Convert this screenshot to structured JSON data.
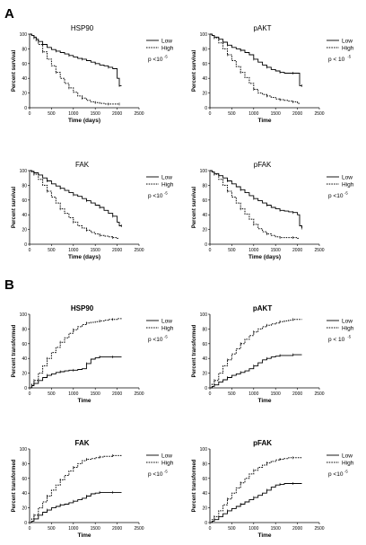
{
  "panels": [
    {
      "letter": "A"
    },
    {
      "letter": "B"
    }
  ],
  "chart_data": [
    {
      "type": "line",
      "panel": "A",
      "title": "HSP90",
      "xlabel": "Time (days)",
      "ylabel": "Percent survival",
      "xticks": [
        "0",
        "500",
        "1000",
        "1500",
        "2000",
        "2500"
      ],
      "yticks": [
        "0",
        "20",
        "40",
        "60",
        "80",
        "100"
      ],
      "xlim": [
        0,
        2500
      ],
      "ylim": [
        0,
        100
      ],
      "legend": [
        "Low",
        "High"
      ],
      "pvalue": "p <10",
      "pexp": "-5",
      "series": [
        {
          "name": "Low",
          "x": [
            0,
            50,
            100,
            150,
            200,
            300,
            400,
            500,
            600,
            700,
            800,
            900,
            1000,
            1100,
            1200,
            1300,
            1400,
            1500,
            1600,
            1700,
            1800,
            1900,
            2000,
            2050,
            2100
          ],
          "y": [
            100,
            98,
            96,
            93,
            90,
            86,
            82,
            79,
            77,
            75,
            73,
            71,
            69,
            67,
            66,
            64,
            62,
            60,
            58,
            57,
            55,
            53,
            40,
            30,
            30
          ]
        },
        {
          "name": "High",
          "x": [
            0,
            50,
            100,
            150,
            200,
            300,
            400,
            500,
            600,
            700,
            800,
            900,
            1000,
            1100,
            1200,
            1300,
            1400,
            1500,
            1600,
            1700,
            1800,
            1900,
            2000,
            2050
          ],
          "y": [
            100,
            98,
            95,
            91,
            86,
            76,
            66,
            57,
            48,
            40,
            33,
            27,
            21,
            16,
            13,
            10,
            8,
            7,
            6,
            5,
            5,
            5,
            5,
            5
          ]
        }
      ]
    },
    {
      "type": "line",
      "panel": "A",
      "title": "pAKT",
      "xlabel": "Time",
      "ylabel": "Percent survival",
      "xticks": [
        "0",
        "500",
        "1000",
        "1500",
        "2000",
        "2500"
      ],
      "yticks": [
        "0",
        "20",
        "40",
        "60",
        "80",
        "100"
      ],
      "xlim": [
        0,
        2500
      ],
      "ylim": [
        0,
        100
      ],
      "legend": [
        "Low",
        "High"
      ],
      "pvalue": "p < 10",
      "pexp": "-5",
      "series": [
        {
          "name": "Low",
          "x": [
            0,
            50,
            100,
            200,
            300,
            400,
            500,
            600,
            700,
            800,
            900,
            1000,
            1100,
            1200,
            1300,
            1400,
            1500,
            1600,
            1700,
            1800,
            1900,
            2000,
            2050,
            2100
          ],
          "y": [
            100,
            98,
            96,
            93,
            89,
            85,
            82,
            80,
            78,
            75,
            72,
            66,
            62,
            58,
            55,
            52,
            50,
            48,
            47,
            47,
            47,
            47,
            30,
            30
          ]
        },
        {
          "name": "High",
          "x": [
            0,
            50,
            100,
            200,
            300,
            400,
            500,
            600,
            700,
            800,
            900,
            1000,
            1100,
            1200,
            1300,
            1400,
            1500,
            1600,
            1700,
            1800,
            1900,
            2000,
            2050
          ],
          "y": [
            100,
            98,
            95,
            88,
            80,
            72,
            64,
            56,
            48,
            41,
            33,
            25,
            20,
            18,
            16,
            14,
            12,
            11,
            10,
            9,
            8,
            6,
            6
          ]
        }
      ]
    },
    {
      "type": "line",
      "panel": "A",
      "title": "FAK",
      "xlabel": "Time (days)",
      "ylabel": "Percent survival",
      "xticks": [
        "0",
        "500",
        "1000",
        "1500",
        "2000",
        "2500"
      ],
      "yticks": [
        "0",
        "20",
        "40",
        "60",
        "80",
        "100"
      ],
      "xlim": [
        0,
        2500
      ],
      "ylim": [
        0,
        100
      ],
      "legend": [
        "Low",
        "High"
      ],
      "pvalue": "p <10",
      "pexp": "-5",
      "series": [
        {
          "name": "Low",
          "x": [
            0,
            50,
            100,
            200,
            300,
            400,
            500,
            600,
            700,
            800,
            900,
            1000,
            1100,
            1200,
            1300,
            1400,
            1500,
            1600,
            1700,
            1800,
            1900,
            2000,
            2050,
            2100
          ],
          "y": [
            100,
            99,
            97,
            94,
            90,
            86,
            82,
            79,
            76,
            73,
            70,
            67,
            65,
            62,
            59,
            56,
            53,
            50,
            46,
            42,
            38,
            30,
            25,
            25
          ]
        },
        {
          "name": "High",
          "x": [
            0,
            50,
            100,
            200,
            300,
            400,
            500,
            600,
            700,
            800,
            900,
            1000,
            1100,
            1200,
            1300,
            1400,
            1500,
            1600,
            1700,
            1800,
            1900,
            2000,
            2050
          ],
          "y": [
            100,
            98,
            95,
            88,
            80,
            72,
            64,
            56,
            48,
            42,
            36,
            30,
            25,
            22,
            19,
            16,
            14,
            12,
            11,
            10,
            9,
            8,
            8
          ]
        }
      ]
    },
    {
      "type": "line",
      "panel": "A",
      "title": "pFAK",
      "xlabel": "Time (days)",
      "ylabel": "Percent survival",
      "xticks": [
        "0",
        "500",
        "1000",
        "1500",
        "2000",
        "2500"
      ],
      "yticks": [
        "0",
        "20",
        "40",
        "60",
        "80",
        "100"
      ],
      "xlim": [
        0,
        2500
      ],
      "ylim": [
        0,
        100
      ],
      "legend": [
        "Low",
        "High"
      ],
      "pvalue": "p <10",
      "pexp": "-5",
      "series": [
        {
          "name": "Low",
          "x": [
            0,
            50,
            100,
            200,
            300,
            400,
            500,
            600,
            700,
            800,
            900,
            1000,
            1100,
            1200,
            1300,
            1400,
            1500,
            1600,
            1700,
            1800,
            1900,
            2000,
            2050,
            2100
          ],
          "y": [
            100,
            98,
            96,
            93,
            90,
            86,
            82,
            78,
            74,
            70,
            66,
            62,
            59,
            56,
            53,
            50,
            48,
            46,
            45,
            44,
            43,
            40,
            25,
            22
          ]
        },
        {
          "name": "High",
          "x": [
            0,
            50,
            100,
            200,
            300,
            400,
            500,
            600,
            700,
            800,
            900,
            1000,
            1100,
            1200,
            1300,
            1400,
            1500,
            1600,
            1700,
            1800,
            1900,
            2000,
            2050
          ],
          "y": [
            100,
            98,
            95,
            88,
            80,
            72,
            64,
            56,
            48,
            41,
            34,
            27,
            21,
            17,
            14,
            12,
            10,
            9,
            9,
            9,
            9,
            8,
            8
          ]
        }
      ]
    },
    {
      "type": "line",
      "panel": "B",
      "title": "HSP90",
      "xlabel": "Time",
      "ylabel": "Percent transformed",
      "xticks": [
        "0",
        "500",
        "1000",
        "1500",
        "2000",
        "2500"
      ],
      "yticks": [
        "0",
        "20",
        "40",
        "60",
        "80",
        "100"
      ],
      "xlim": [
        0,
        2500
      ],
      "ylim": [
        0,
        100
      ],
      "legend": [
        "Low",
        "High"
      ],
      "pvalue": "p <10",
      "pexp": "-5",
      "series": [
        {
          "name": "Low",
          "x": [
            0,
            50,
            100,
            200,
            300,
            400,
            500,
            600,
            700,
            800,
            900,
            1000,
            1100,
            1200,
            1300,
            1400,
            1500,
            1600,
            1700,
            1800,
            1900,
            2000,
            2100
          ],
          "y": [
            0,
            3,
            6,
            10,
            14,
            17,
            19,
            21,
            22,
            23,
            24,
            24,
            25,
            26,
            33,
            39,
            41,
            42,
            42,
            42,
            42,
            42,
            42
          ]
        },
        {
          "name": "High",
          "x": [
            0,
            50,
            100,
            200,
            300,
            400,
            500,
            600,
            700,
            800,
            900,
            1000,
            1100,
            1200,
            1300,
            1400,
            1500,
            1600,
            1700,
            1800,
            1900,
            2000,
            2100
          ],
          "y": [
            0,
            5,
            10,
            20,
            30,
            40,
            48,
            55,
            62,
            68,
            74,
            79,
            83,
            86,
            88,
            89,
            90,
            91,
            92,
            93,
            93,
            94,
            94
          ]
        }
      ]
    },
    {
      "type": "line",
      "panel": "B",
      "title": "pAKT",
      "xlabel": "Time",
      "ylabel": "Percent transformed",
      "xticks": [
        "0",
        "500",
        "1000",
        "1500",
        "2000",
        "2500"
      ],
      "yticks": [
        "0",
        "20",
        "40",
        "60",
        "80",
        "100"
      ],
      "xlim": [
        0,
        2500
      ],
      "ylim": [
        0,
        100
      ],
      "legend": [
        "Low",
        "High"
      ],
      "pvalue": "p < 10",
      "pexp": "-5",
      "series": [
        {
          "name": "Low",
          "x": [
            0,
            50,
            100,
            200,
            300,
            400,
            500,
            600,
            700,
            800,
            900,
            1000,
            1100,
            1200,
            1300,
            1400,
            1500,
            1600,
            1700,
            1800,
            1900,
            2000,
            2100
          ],
          "y": [
            0,
            2,
            4,
            8,
            11,
            14,
            17,
            19,
            21,
            23,
            26,
            30,
            34,
            38,
            40,
            42,
            43,
            44,
            44,
            44,
            45,
            45,
            45
          ]
        },
        {
          "name": "High",
          "x": [
            0,
            50,
            100,
            200,
            300,
            400,
            500,
            600,
            700,
            800,
            900,
            1000,
            1100,
            1200,
            1300,
            1400,
            1500,
            1600,
            1700,
            1800,
            1900,
            2000,
            2100
          ],
          "y": [
            0,
            5,
            10,
            20,
            30,
            38,
            46,
            53,
            60,
            66,
            71,
            76,
            80,
            83,
            85,
            87,
            88,
            90,
            91,
            92,
            93,
            93,
            93
          ]
        }
      ]
    },
    {
      "type": "line",
      "panel": "B",
      "title": "FAK",
      "xlabel": "Time",
      "ylabel": "Percent transformed",
      "xticks": [
        "0",
        "500",
        "1000",
        "1500",
        "2000",
        "2500"
      ],
      "yticks": [
        "0",
        "20",
        "40",
        "60",
        "80",
        "100"
      ],
      "xlim": [
        0,
        2500
      ],
      "ylim": [
        0,
        100
      ],
      "legend": [
        "Low",
        "High"
      ],
      "pvalue": "p <10",
      "pexp": "-5",
      "series": [
        {
          "name": "Low",
          "x": [
            0,
            50,
            100,
            200,
            300,
            400,
            500,
            600,
            700,
            800,
            900,
            1000,
            1100,
            1200,
            1300,
            1400,
            1500,
            1600,
            1700,
            1800,
            1900,
            2000,
            2100
          ],
          "y": [
            0,
            2,
            5,
            10,
            14,
            17,
            20,
            22,
            24,
            25,
            27,
            29,
            31,
            33,
            36,
            39,
            40,
            41,
            41,
            41,
            41,
            41,
            41
          ]
        },
        {
          "name": "High",
          "x": [
            0,
            50,
            100,
            200,
            300,
            400,
            500,
            600,
            700,
            800,
            900,
            1000,
            1100,
            1200,
            1300,
            1400,
            1500,
            1600,
            1700,
            1800,
            1900,
            2000,
            2100
          ],
          "y": [
            0,
            5,
            10,
            20,
            28,
            36,
            44,
            51,
            58,
            64,
            70,
            75,
            80,
            84,
            86,
            87,
            88,
            89,
            90,
            90,
            91,
            91,
            91
          ]
        }
      ]
    },
    {
      "type": "line",
      "panel": "B",
      "title": "pFAK",
      "xlabel": "Time",
      "ylabel": "Percent transformed",
      "xticks": [
        "0",
        "500",
        "1000",
        "1500",
        "2000",
        "2500"
      ],
      "yticks": [
        "0",
        "20",
        "40",
        "60",
        "80",
        "100"
      ],
      "xlim": [
        0,
        2500
      ],
      "ylim": [
        0,
        100
      ],
      "legend": [
        "Low",
        "High"
      ],
      "pvalue": "p <10",
      "pexp": "-5",
      "series": [
        {
          "name": "Low",
          "x": [
            0,
            50,
            100,
            200,
            300,
            400,
            500,
            600,
            700,
            800,
            900,
            1000,
            1100,
            1200,
            1300,
            1400,
            1500,
            1600,
            1700,
            1800,
            1900,
            2000,
            2100
          ],
          "y": [
            0,
            2,
            4,
            8,
            12,
            16,
            19,
            22,
            25,
            28,
            31,
            34,
            37,
            40,
            44,
            48,
            51,
            52,
            53,
            53,
            53,
            53,
            53
          ]
        },
        {
          "name": "High",
          "x": [
            0,
            50,
            100,
            200,
            300,
            400,
            500,
            600,
            700,
            800,
            900,
            1000,
            1100,
            1200,
            1300,
            1400,
            1500,
            1600,
            1700,
            1800,
            1900,
            2000,
            2100
          ],
          "y": [
            0,
            4,
            8,
            16,
            24,
            32,
            40,
            47,
            54,
            60,
            66,
            71,
            75,
            78,
            81,
            83,
            85,
            86,
            87,
            88,
            88,
            88,
            88
          ]
        }
      ]
    }
  ]
}
